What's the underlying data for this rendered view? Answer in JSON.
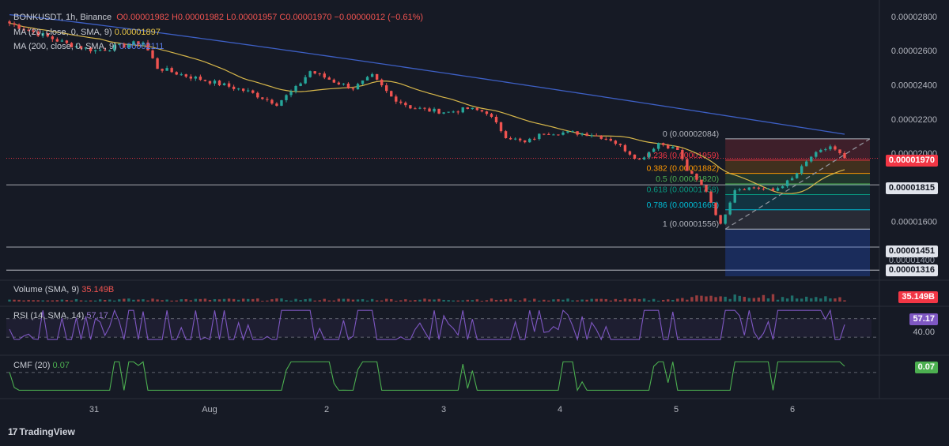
{
  "header": {
    "symbol": "BONKUSDT, 1h, Binance",
    "open": "O0.00001982",
    "high": "H0.00001982",
    "low": "L0.00001957",
    "close": "C0.00001970",
    "change": "−0.00000012 (−0.61%)",
    "ma1_label": "MA (20, close, 0, SMA, 9)",
    "ma1_value": "0.00001897",
    "ma2_label": "MA (200, close, 0, SMA, 9)",
    "ma2_value": "0.00002111"
  },
  "price_scale": [
    "0.00002800",
    "0.00002600",
    "0.00002400",
    "0.00002200",
    "0.00002000",
    "0.00001600"
  ],
  "price_tags": {
    "current": "0.00001970",
    "line1": "0.00001815",
    "line2": "0.00001451",
    "line3": "0.00001400",
    "line4": "0.00001316"
  },
  "fib": {
    "levels": [
      {
        "label": "0 (0.00002084)",
        "ratio": 0,
        "color": "#b2b5be"
      },
      {
        "label": "0.236 (0.00001959)",
        "ratio": 0.236,
        "color": "#f23645"
      },
      {
        "label": "0.382 (0.00001882)",
        "ratio": 0.382,
        "color": "#ff9800"
      },
      {
        "label": "0.5 (0.00001820)",
        "ratio": 0.5,
        "color": "#4caf50"
      },
      {
        "label": "0.618 (0.00001758)",
        "ratio": 0.618,
        "color": "#089981"
      },
      {
        "label": "0.786 (0.00001669)",
        "ratio": 0.786,
        "color": "#00bcd4"
      },
      {
        "label": "1 (0.00001556)",
        "ratio": 1,
        "color": "#b2b5be"
      }
    ]
  },
  "volume": {
    "label": "Volume (SMA, 9)",
    "value": "35.149B",
    "tag": "35.149B"
  },
  "rsi": {
    "label": "RSI (14, SMA, 14)",
    "value": "57.17",
    "tag": "57.17",
    "level_label": "40.00"
  },
  "cmf": {
    "label": "CMF (20)",
    "value": "0.07",
    "tag": "0.07"
  },
  "x_axis_labels": [
    "31",
    "Aug",
    "2",
    "3",
    "4",
    "5",
    "6"
  ],
  "logo": "TradingView",
  "colors": {
    "up": "#26a69a",
    "down": "#ef5350",
    "ma20": "#d6b64a",
    "ma200": "#3d5fc4",
    "rsi": "#7e57c2",
    "cmf": "#4caf50"
  },
  "chart_data": {
    "type": "candlestick",
    "title": "BONKUSDT, 1h, Binance",
    "ylim": [
      1.28e-05,
      2.85e-05
    ],
    "x_ticks": [
      "31",
      "Aug",
      "2",
      "3",
      "4",
      "5",
      "6"
    ],
    "close_path": [
      {
        "t": 0,
        "p": 2.76e-05
      },
      {
        "t": 6,
        "p": 2.7e-05
      },
      {
        "t": 12,
        "p": 2.64e-05
      },
      {
        "t": 18,
        "p": 2.6e-05
      },
      {
        "t": 24,
        "p": 2.63e-05
      },
      {
        "t": 28,
        "p": 2.65e-05
      },
      {
        "t": 31,
        "p": 2.5e-05
      },
      {
        "t": 36,
        "p": 2.46e-05
      },
      {
        "t": 42,
        "p": 2.42e-05
      },
      {
        "t": 46,
        "p": 2.39e-05
      },
      {
        "t": 50,
        "p": 2.36e-05
      },
      {
        "t": 56,
        "p": 2.29e-05
      },
      {
        "t": 60,
        "p": 2.38e-05
      },
      {
        "t": 63,
        "p": 2.48e-05
      },
      {
        "t": 68,
        "p": 2.42e-05
      },
      {
        "t": 72,
        "p": 2.38e-05
      },
      {
        "t": 76,
        "p": 2.45e-05
      },
      {
        "t": 80,
        "p": 2.33e-05
      },
      {
        "t": 84,
        "p": 2.27e-05
      },
      {
        "t": 88,
        "p": 2.25e-05
      },
      {
        "t": 92,
        "p": 2.24e-05
      },
      {
        "t": 96,
        "p": 2.26e-05
      },
      {
        "t": 100,
        "p": 2.24e-05
      },
      {
        "t": 104,
        "p": 2.1e-05
      },
      {
        "t": 108,
        "p": 2.06e-05
      },
      {
        "t": 112,
        "p": 2.12e-05
      },
      {
        "t": 118,
        "p": 2.12e-05
      },
      {
        "t": 122,
        "p": 2.11e-05
      },
      {
        "t": 126,
        "p": 2.08e-05
      },
      {
        "t": 130,
        "p": 2e-05
      },
      {
        "t": 132,
        "p": 1.96e-05
      },
      {
        "t": 136,
        "p": 2.06e-05
      },
      {
        "t": 140,
        "p": 2.02e-05
      },
      {
        "t": 142,
        "p": 1.9e-05
      },
      {
        "t": 146,
        "p": 1.78e-05
      },
      {
        "t": 149,
        "p": 1.58e-05
      },
      {
        "t": 152,
        "p": 1.79e-05
      },
      {
        "t": 156,
        "p": 1.8e-05
      },
      {
        "t": 160,
        "p": 1.78e-05
      },
      {
        "t": 164,
        "p": 1.85e-05
      },
      {
        "t": 168,
        "p": 1.98e-05
      },
      {
        "t": 172,
        "p": 2.04e-05
      },
      {
        "t": 175,
        "p": 1.97e-05
      }
    ],
    "ma20": {
      "name": "MA (20, close, 0, SMA, 9)",
      "last": 1.897e-05
    },
    "ma200": {
      "name": "MA (200, close, 0, SMA, 9)",
      "last": 2.111e-05
    },
    "volume_last": "35.149B",
    "rsi_last": 57.17,
    "rsi_levels": [
      70,
      30
    ],
    "cmf_last": 0.07,
    "fib_range": [
      2.084e-05,
      1.556e-05
    ]
  }
}
